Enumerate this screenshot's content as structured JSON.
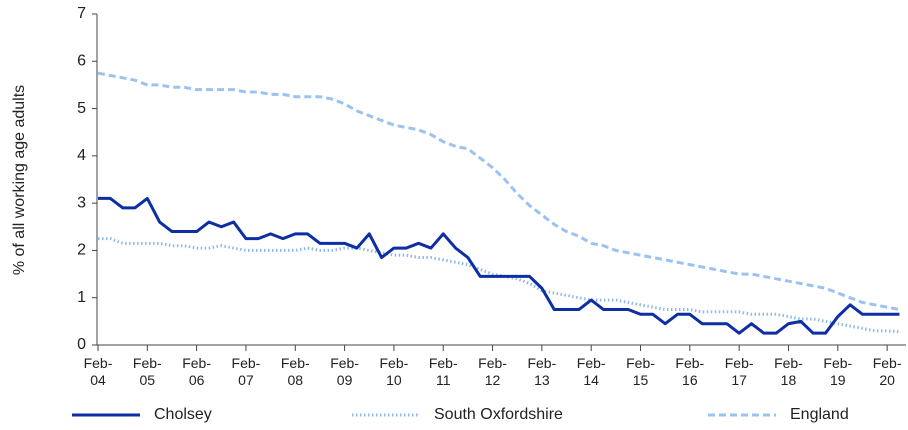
{
  "chart_data": {
    "type": "line",
    "y_label": "% of all working age adults",
    "categories": [
      "Feb-04",
      null,
      null,
      null,
      "Feb-05",
      null,
      null,
      null,
      "Feb-06",
      null,
      null,
      null,
      "Feb-07",
      null,
      null,
      null,
      "Feb-08",
      null,
      null,
      null,
      "Feb-09",
      null,
      null,
      null,
      "Feb-10",
      null,
      null,
      null,
      "Feb-11",
      null,
      null,
      null,
      "Feb-12",
      null,
      null,
      null,
      "Feb-13",
      null,
      null,
      null,
      "Feb-14",
      null,
      null,
      null,
      "Feb-15",
      null,
      null,
      null,
      "Feb-16",
      null,
      null,
      null,
      "Feb-17",
      null,
      null,
      null,
      "Feb-18",
      null,
      null,
      null,
      "Feb-19",
      null,
      null,
      null,
      "Feb-20",
      null
    ],
    "series": [
      {
        "name": "Cholsey",
        "color": "#0d2fa3",
        "style": "solid",
        "values": [
          3.1,
          3.1,
          2.9,
          2.9,
          3.1,
          2.6,
          2.4,
          2.4,
          2.4,
          2.6,
          2.5,
          2.6,
          2.25,
          2.25,
          2.35,
          2.25,
          2.35,
          2.35,
          2.15,
          2.15,
          2.15,
          2.05,
          2.35,
          1.85,
          2.05,
          2.05,
          2.15,
          2.05,
          2.35,
          2.05,
          1.85,
          1.45,
          1.45,
          1.45,
          1.45,
          1.45,
          1.2,
          0.75,
          0.75,
          0.75,
          0.95,
          0.75,
          0.75,
          0.75,
          0.65,
          0.65,
          0.45,
          0.65,
          0.65,
          0.45,
          0.45,
          0.45,
          0.25,
          0.45,
          0.25,
          0.25,
          0.45,
          0.5,
          0.25,
          0.25,
          0.6,
          0.85,
          0.65,
          0.65,
          0.65,
          0.65
        ]
      },
      {
        "name": "South Oxfordshire",
        "color": "#8fb8ea",
        "style": "dotted",
        "values": [
          2.25,
          2.25,
          2.15,
          2.15,
          2.15,
          2.15,
          2.1,
          2.1,
          2.05,
          2.05,
          2.1,
          2.05,
          2.0,
          2.0,
          2.0,
          2.0,
          2.0,
          2.05,
          2.0,
          2.0,
          2.05,
          2.05,
          2.0,
          1.95,
          1.9,
          1.9,
          1.85,
          1.85,
          1.8,
          1.75,
          1.7,
          1.6,
          1.5,
          1.45,
          1.4,
          1.3,
          1.15,
          1.1,
          1.05,
          1.0,
          0.95,
          0.95,
          0.95,
          0.9,
          0.85,
          0.8,
          0.75,
          0.75,
          0.75,
          0.7,
          0.7,
          0.7,
          0.7,
          0.65,
          0.65,
          0.65,
          0.6,
          0.55,
          0.55,
          0.5,
          0.45,
          0.4,
          0.35,
          0.3,
          0.3,
          0.28
        ]
      },
      {
        "name": "England",
        "color": "#9cc3f0",
        "style": "dashed",
        "values": [
          5.75,
          5.7,
          5.65,
          5.6,
          5.5,
          5.5,
          5.45,
          5.45,
          5.4,
          5.4,
          5.4,
          5.4,
          5.35,
          5.35,
          5.3,
          5.3,
          5.25,
          5.25,
          5.25,
          5.2,
          5.1,
          4.95,
          4.85,
          4.75,
          4.65,
          4.6,
          4.55,
          4.45,
          4.3,
          4.2,
          4.15,
          3.95,
          3.75,
          3.5,
          3.2,
          2.95,
          2.75,
          2.55,
          2.4,
          2.3,
          2.15,
          2.1,
          2.0,
          1.95,
          1.9,
          1.85,
          1.8,
          1.75,
          1.7,
          1.65,
          1.6,
          1.55,
          1.5,
          1.5,
          1.45,
          1.4,
          1.35,
          1.3,
          1.25,
          1.2,
          1.1,
          1.0,
          0.9,
          0.85,
          0.8,
          0.75
        ]
      }
    ],
    "ylim": [
      0,
      7
    ],
    "yticks": [
      0,
      1,
      2,
      3,
      4,
      5,
      6,
      7
    ],
    "legend": "bottom"
  }
}
